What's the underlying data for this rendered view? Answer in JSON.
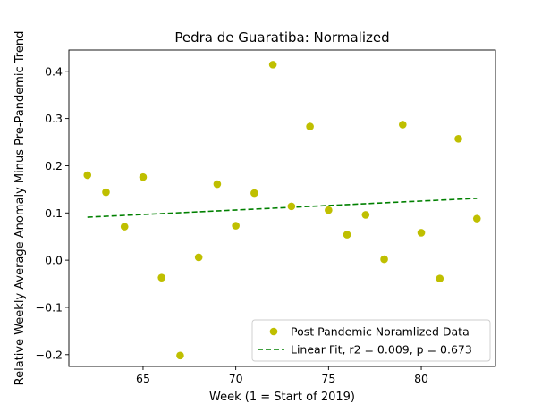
{
  "chart_data": {
    "type": "scatter",
    "title": "Pedra de Guaratiba: Normalized",
    "xlabel": "Week (1 = Start of 2019)",
    "ylabel": "Relative Weekly Average Anomaly Minus Pre-Pandemic Trend",
    "xlim": [
      61.0,
      84.0
    ],
    "ylim": [
      -0.225,
      0.445
    ],
    "xticks": [
      65,
      70,
      75,
      80
    ],
    "xtick_labels": [
      "65",
      "70",
      "75",
      "80"
    ],
    "yticks": [
      -0.2,
      -0.1,
      0.0,
      0.1,
      0.2,
      0.3,
      0.4
    ],
    "ytick_labels": [
      "−0.2",
      "−0.1",
      "0.0",
      "0.1",
      "0.2",
      "0.3",
      "0.4"
    ],
    "grid": false,
    "legend_position": "lower-right",
    "series": [
      {
        "name": "Post Pandemic Noramlized Data",
        "kind": "scatter",
        "color": "#bfbf00",
        "marker": "circle",
        "x": [
          62,
          63,
          64,
          65,
          66,
          67,
          68,
          69,
          70,
          71,
          72,
          73,
          74,
          75,
          76,
          77,
          78,
          79,
          80,
          81,
          82,
          83
        ],
        "y": [
          0.18,
          0.144,
          0.071,
          0.176,
          -0.037,
          -0.202,
          0.006,
          0.161,
          0.073,
          0.142,
          0.414,
          0.114,
          0.283,
          0.106,
          0.054,
          0.096,
          0.002,
          0.287,
          0.058,
          -0.039,
          0.257,
          0.088
        ]
      },
      {
        "name": "Linear Fit, r2 = 0.009, p = 0.673",
        "kind": "line",
        "color": "#008000",
        "dash": "dashed",
        "x": [
          62,
          83
        ],
        "y": [
          0.091,
          0.131
        ]
      }
    ]
  }
}
